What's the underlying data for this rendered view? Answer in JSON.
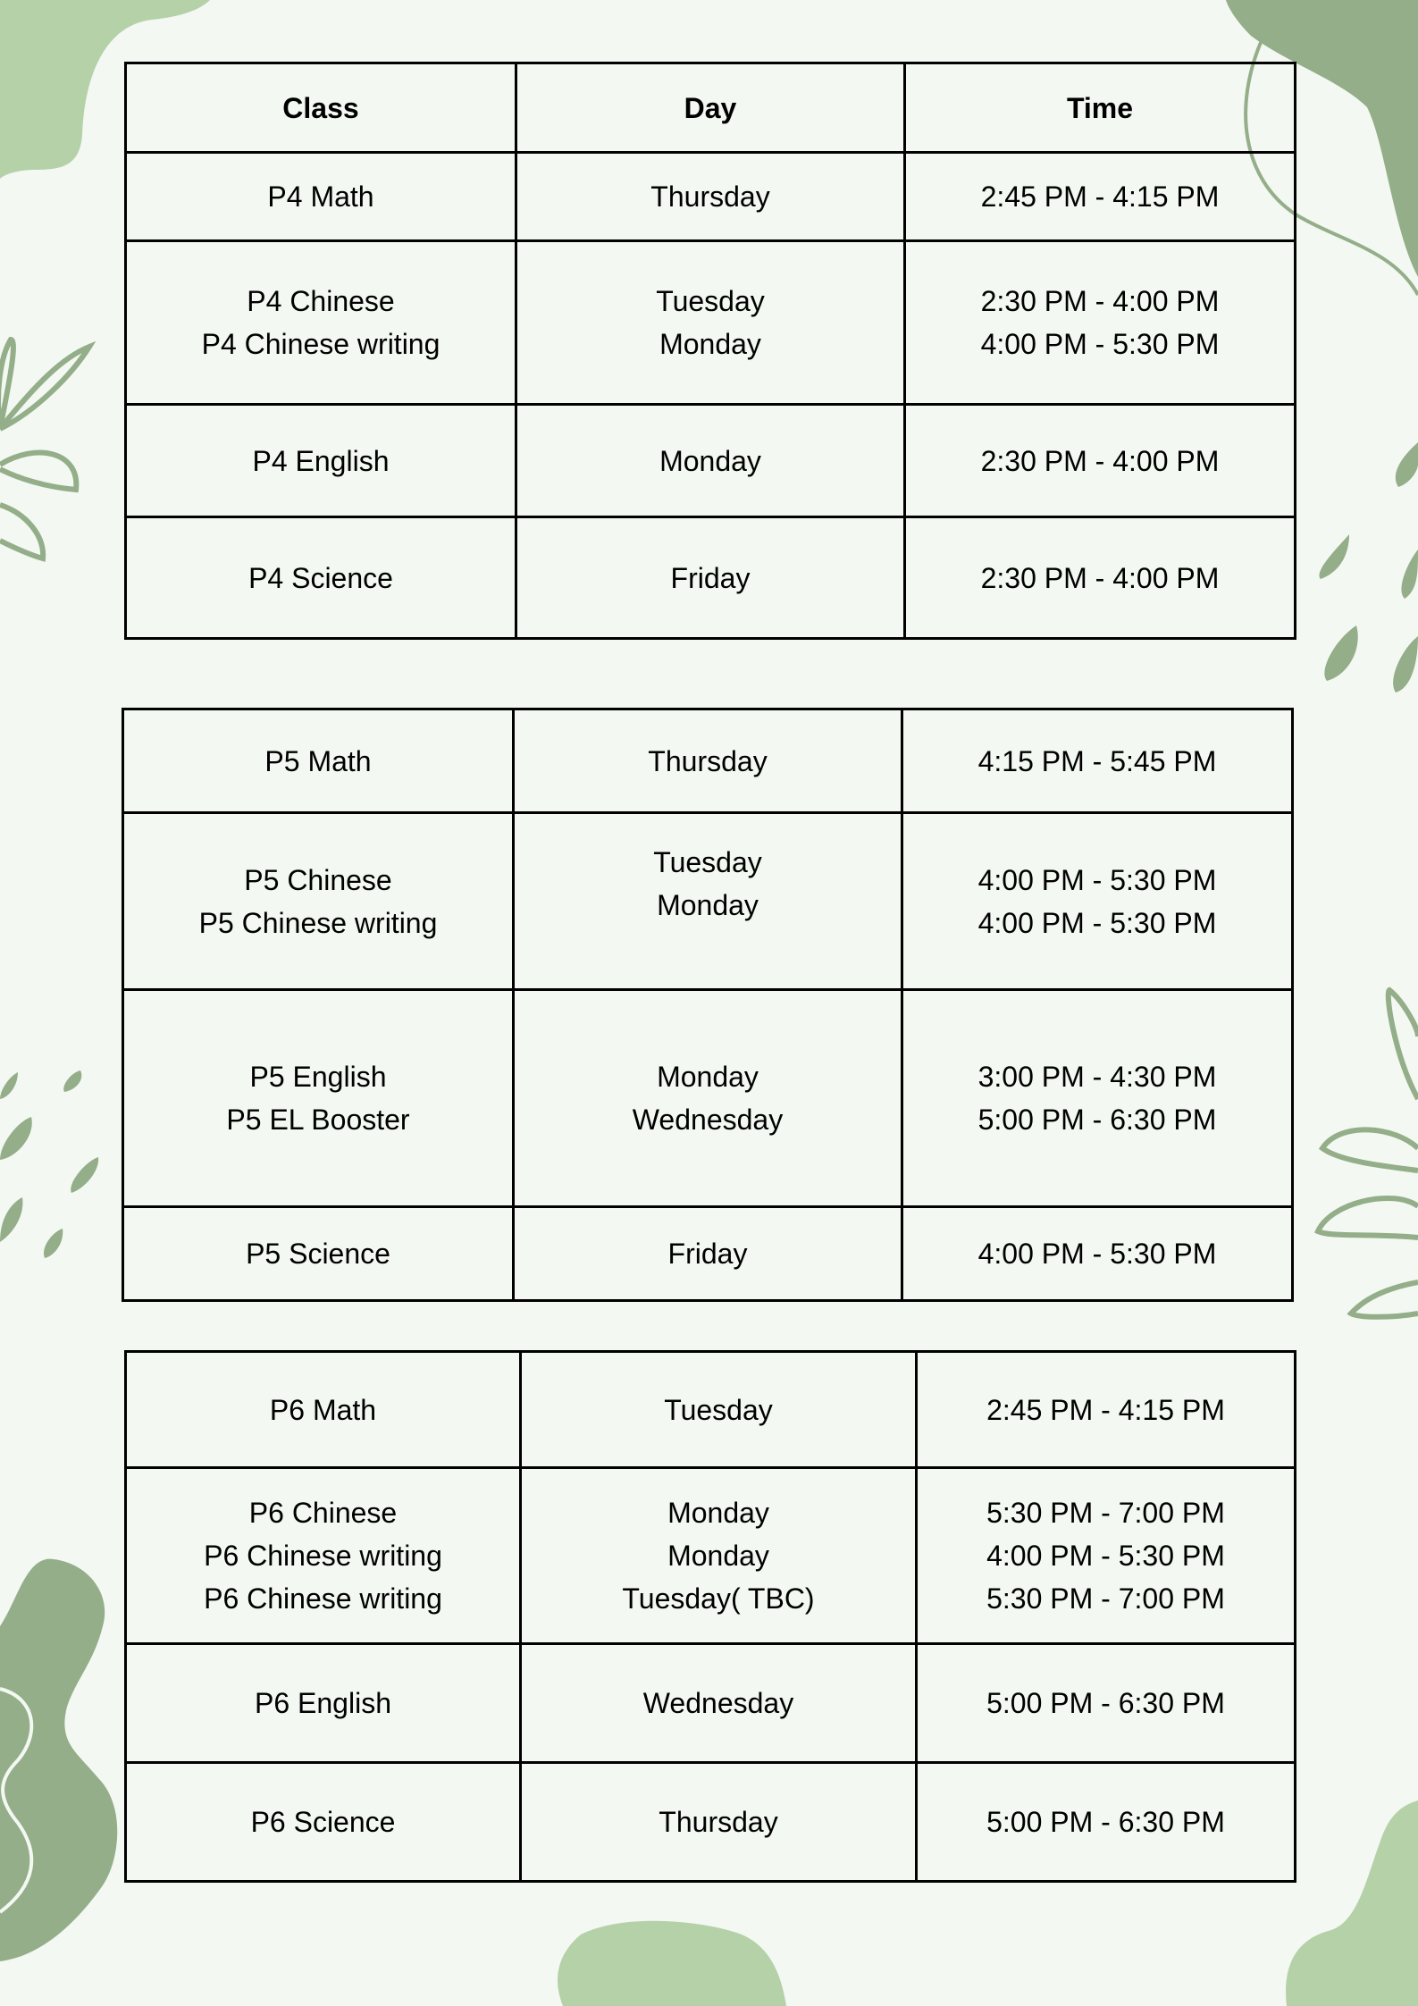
{
  "colors": {
    "background": "#f3f8f2",
    "blob_light": "#b5d1a8",
    "blob_dark": "#93ae88",
    "border": "#000000"
  },
  "tables": [
    {
      "header": [
        "Class",
        "Day",
        "Time"
      ],
      "rows": [
        {
          "class": [
            "P4 Math"
          ],
          "day": [
            "Thursday"
          ],
          "time": [
            "2:45 PM - 4:15 PM"
          ]
        },
        {
          "class": [
            "P4 Chinese",
            "P4 Chinese writing"
          ],
          "day": [
            "Tuesday",
            "Monday"
          ],
          "time": [
            "2:30 PM - 4:00 PM",
            "4:00 PM - 5:30 PM"
          ]
        },
        {
          "class": [
            "P4 English"
          ],
          "day": [
            "Monday"
          ],
          "time": [
            "2:30 PM - 4:00 PM"
          ]
        },
        {
          "class": [
            "P4 Science"
          ],
          "day": [
            "Friday"
          ],
          "time": [
            "2:30 PM - 4:00 PM"
          ]
        }
      ]
    },
    {
      "rows": [
        {
          "class": [
            "P5 Math"
          ],
          "day": [
            "Thursday"
          ],
          "time": [
            "4:15 PM - 5:45 PM"
          ]
        },
        {
          "class": [
            "P5 Chinese",
            "P5 Chinese writing"
          ],
          "day": [
            "Tuesday",
            "Monday"
          ],
          "time": [
            "4:00 PM - 5:30 PM",
            "4:00 PM - 5:30 PM"
          ]
        },
        {
          "class": [
            "P5 English",
            "P5 EL Booster"
          ],
          "day": [
            "Monday",
            "Wednesday"
          ],
          "time": [
            "3:00 PM - 4:30 PM",
            "5:00 PM - 6:30 PM"
          ]
        },
        {
          "class": [
            "P5 Science"
          ],
          "day": [
            "Friday"
          ],
          "time": [
            "4:00 PM - 5:30 PM"
          ]
        }
      ]
    },
    {
      "rows": [
        {
          "class": [
            "P6 Math"
          ],
          "day": [
            "Tuesday"
          ],
          "time": [
            "2:45 PM - 4:15 PM"
          ]
        },
        {
          "class": [
            "P6 Chinese",
            "P6 Chinese writing",
            "P6 Chinese writing"
          ],
          "day": [
            "Monday",
            "Monday",
            "Tuesday( TBC)"
          ],
          "time": [
            "5:30 PM - 7:00 PM",
            "4:00 PM - 5:30 PM",
            "5:30 PM - 7:00 PM"
          ]
        },
        {
          "class": [
            "P6 English"
          ],
          "day": [
            "Wednesday"
          ],
          "time": [
            "5:00 PM - 6:30 PM"
          ]
        },
        {
          "class": [
            "P6 Science"
          ],
          "day": [
            "Thursday"
          ],
          "time": [
            "5:00 PM - 6:30 PM"
          ]
        }
      ]
    }
  ]
}
